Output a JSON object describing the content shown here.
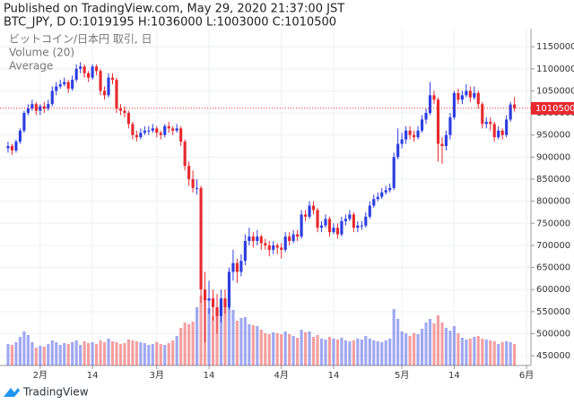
{
  "header": {
    "published": "Published on TradingView.com, May 29, 2020 21:37:00 JST",
    "symbol": "BTC_JPY, D O:1019195 H:1036000 L:1003000 C:1010500"
  },
  "chart_data": {
    "type": "candlestick",
    "legend": [
      "ビットコイン/日本円 取引, 日",
      "Volume (20)",
      "Average"
    ],
    "open": [
      920000,
      925000,
      915000,
      935000,
      960000,
      1000000,
      1010000,
      1020000,
      1005000,
      1015000,
      1010000,
      1020000,
      1050000,
      1060000,
      1065000,
      1070000,
      1055000,
      1075000,
      1100000,
      1105000,
      1090000,
      1080000,
      1105000,
      1095000,
      1050000,
      1040000,
      1080000,
      1075000,
      1010000,
      1005000,
      1000000,
      975000,
      950000,
      945000,
      955000,
      960000,
      960000,
      965000,
      955000,
      950000,
      970000,
      965000,
      960000,
      965000,
      935000,
      880000,
      850000,
      830000,
      830000,
      600000,
      575000,
      580000,
      560000,
      540000,
      580000,
      560000,
      640000,
      660000,
      640000,
      665000,
      710000,
      720000,
      710000,
      720000,
      705000,
      700000,
      690000,
      700000,
      695000,
      690000,
      720000,
      710000,
      725000,
      720000,
      770000,
      765000,
      790000,
      780000,
      740000,
      745000,
      760000,
      730000,
      740000,
      725000,
      755000,
      760000,
      770000,
      740000,
      745000,
      745000,
      765000,
      790000,
      805000,
      810000,
      820000,
      825000,
      830000,
      900000,
      930000,
      940000,
      960000,
      950000,
      945000,
      960000,
      985000,
      1000000,
      1040000,
      1030000,
      930000,
      925000,
      950000,
      990000,
      1045000,
      1030000,
      1040000,
      1050000,
      1035000,
      1045000,
      1020000,
      975000,
      980000,
      975000,
      945000,
      960000,
      950000,
      985000,
      1019195
    ],
    "high": [
      935000,
      930000,
      940000,
      965000,
      1005000,
      1020000,
      1030000,
      1025000,
      1020000,
      1025000,
      1030000,
      1060000,
      1070000,
      1075000,
      1080000,
      1075000,
      1085000,
      1110000,
      1115000,
      1110000,
      1095000,
      1110000,
      1110000,
      1100000,
      1060000,
      1090000,
      1090000,
      1080000,
      1020000,
      1015000,
      1005000,
      980000,
      960000,
      965000,
      970000,
      970000,
      975000,
      970000,
      960000,
      975000,
      980000,
      970000,
      975000,
      970000,
      940000,
      890000,
      870000,
      850000,
      835000,
      640000,
      620000,
      600000,
      590000,
      600000,
      600000,
      650000,
      690000,
      670000,
      680000,
      725000,
      740000,
      730000,
      735000,
      725000,
      715000,
      710000,
      710000,
      705000,
      705000,
      730000,
      730000,
      735000,
      735000,
      780000,
      780000,
      800000,
      800000,
      785000,
      755000,
      770000,
      765000,
      750000,
      750000,
      765000,
      770000,
      780000,
      775000,
      755000,
      755000,
      775000,
      800000,
      815000,
      820000,
      830000,
      835000,
      840000,
      910000,
      965000,
      955000,
      970000,
      970000,
      960000,
      970000,
      995000,
      1010000,
      1070000,
      1050000,
      1035000,
      945000,
      960000,
      1000000,
      1050000,
      1055000,
      1050000,
      1065000,
      1060000,
      1060000,
      1050000,
      1025000,
      990000,
      990000,
      980000,
      970000,
      965000,
      995000,
      1025000,
      1036000
    ],
    "low": [
      910000,
      905000,
      910000,
      930000,
      955000,
      995000,
      1005000,
      995000,
      995000,
      1000000,
      1005000,
      1015000,
      1040000,
      1055000,
      1060000,
      1045000,
      1050000,
      1070000,
      1090000,
      1080000,
      1070000,
      1075000,
      1085000,
      1040000,
      1030000,
      1035000,
      1065000,
      1000000,
      995000,
      990000,
      965000,
      940000,
      935000,
      940000,
      950000,
      950000,
      955000,
      945000,
      940000,
      945000,
      955000,
      950000,
      955000,
      925000,
      870000,
      835000,
      820000,
      815000,
      570000,
      480000,
      545000,
      530000,
      500000,
      525000,
      545000,
      555000,
      620000,
      615000,
      630000,
      655000,
      700000,
      695000,
      700000,
      690000,
      690000,
      675000,
      680000,
      680000,
      670000,
      685000,
      700000,
      705000,
      710000,
      715000,
      755000,
      760000,
      770000,
      730000,
      730000,
      740000,
      720000,
      725000,
      715000,
      720000,
      745000,
      755000,
      730000,
      730000,
      735000,
      740000,
      760000,
      785000,
      800000,
      805000,
      815000,
      820000,
      825000,
      895000,
      920000,
      930000,
      940000,
      935000,
      940000,
      955000,
      975000,
      995000,
      1020000,
      890000,
      885000,
      915000,
      940000,
      985000,
      1020000,
      1020000,
      1035000,
      1025000,
      1030000,
      1010000,
      965000,
      965000,
      960000,
      935000,
      940000,
      940000,
      945000,
      980000,
      1003000
    ],
    "close": [
      925000,
      915000,
      935000,
      960000,
      1000000,
      1010000,
      1020000,
      1005000,
      1015000,
      1010000,
      1020000,
      1050000,
      1060000,
      1065000,
      1070000,
      1055000,
      1075000,
      1100000,
      1105000,
      1090000,
      1080000,
      1105000,
      1095000,
      1050000,
      1040000,
      1080000,
      1075000,
      1010000,
      1005000,
      1000000,
      975000,
      950000,
      945000,
      955000,
      960000,
      960000,
      965000,
      955000,
      950000,
      970000,
      965000,
      960000,
      965000,
      935000,
      880000,
      850000,
      830000,
      830000,
      600000,
      575000,
      580000,
      560000,
      540000,
      580000,
      560000,
      640000,
      660000,
      640000,
      665000,
      710000,
      720000,
      710000,
      720000,
      705000,
      700000,
      690000,
      700000,
      695000,
      690000,
      720000,
      710000,
      725000,
      720000,
      770000,
      765000,
      790000,
      780000,
      740000,
      745000,
      760000,
      730000,
      740000,
      725000,
      755000,
      760000,
      770000,
      740000,
      745000,
      745000,
      765000,
      790000,
      805000,
      810000,
      820000,
      825000,
      830000,
      900000,
      930000,
      940000,
      960000,
      950000,
      945000,
      960000,
      985000,
      1000000,
      1040000,
      1030000,
      930000,
      925000,
      950000,
      990000,
      1045000,
      1030000,
      1040000,
      1050000,
      1035000,
      1045000,
      1020000,
      975000,
      980000,
      975000,
      945000,
      960000,
      950000,
      985000,
      1019195,
      1010500
    ],
    "volume": [
      2400,
      2300,
      2600,
      3200,
      3800,
      3400,
      2600,
      2000,
      2200,
      2100,
      2400,
      2800,
      2600,
      2300,
      2500,
      2400,
      2600,
      2800,
      2300,
      2700,
      2500,
      2600,
      2400,
      2800,
      2600,
      3000,
      2700,
      2600,
      2400,
      2500,
      2900,
      2800,
      2700,
      2600,
      2500,
      2300,
      2400,
      2600,
      2400,
      2300,
      2500,
      2800,
      3300,
      4200,
      4800,
      4600,
      4900,
      6500,
      7800,
      7200,
      6400,
      5500,
      5800,
      7000,
      6600,
      7400,
      6200,
      5000,
      5300,
      5400,
      4600,
      4500,
      4400,
      4000,
      3600,
      3500,
      3700,
      3600,
      3500,
      3800,
      3500,
      3300,
      3100,
      4000,
      3700,
      3800,
      3200,
      3400,
      3000,
      2900,
      3200,
      3000,
      2900,
      3100,
      2800,
      2700,
      2800,
      3000,
      2900,
      3300,
      3000,
      2800,
      2700,
      2600,
      2800,
      3000,
      6300,
      5200,
      3800,
      3600,
      3300,
      3600,
      3500,
      4100,
      4800,
      5200,
      4700,
      5600,
      4800,
      4200,
      3900,
      4400,
      3600,
      3100,
      2900,
      3000,
      3200,
      3300,
      3000,
      2900,
      2800,
      2700,
      2400,
      2600,
      2700,
      2600,
      2400
    ],
    "vlim": [
      0,
      10000
    ],
    "up_color": "#2d3de0",
    "down_color": "#e62a2f",
    "ylim": [
      428000,
      1199000
    ],
    "yticks": [
      450000,
      500000,
      550000,
      600000,
      650000,
      700000,
      750000,
      800000,
      850000,
      900000,
      950000,
      1000000,
      1050000,
      1100000,
      1150000
    ],
    "xlim": [
      -2,
      130.1
    ],
    "xticks": [
      {
        "value": 8,
        "label": "2月"
      },
      {
        "value": 21,
        "label": "14"
      },
      {
        "value": 37,
        "label": "3月"
      },
      {
        "value": 50,
        "label": "14"
      },
      {
        "value": 68,
        "label": "4月"
      },
      {
        "value": 81,
        "label": "14"
      },
      {
        "value": 98,
        "label": "5月"
      },
      {
        "value": 111,
        "label": "14"
      },
      {
        "value": 129,
        "label": "6月"
      }
    ],
    "grid": true,
    "last_price_line": true
  },
  "footer": {
    "brand": "TradingView"
  }
}
